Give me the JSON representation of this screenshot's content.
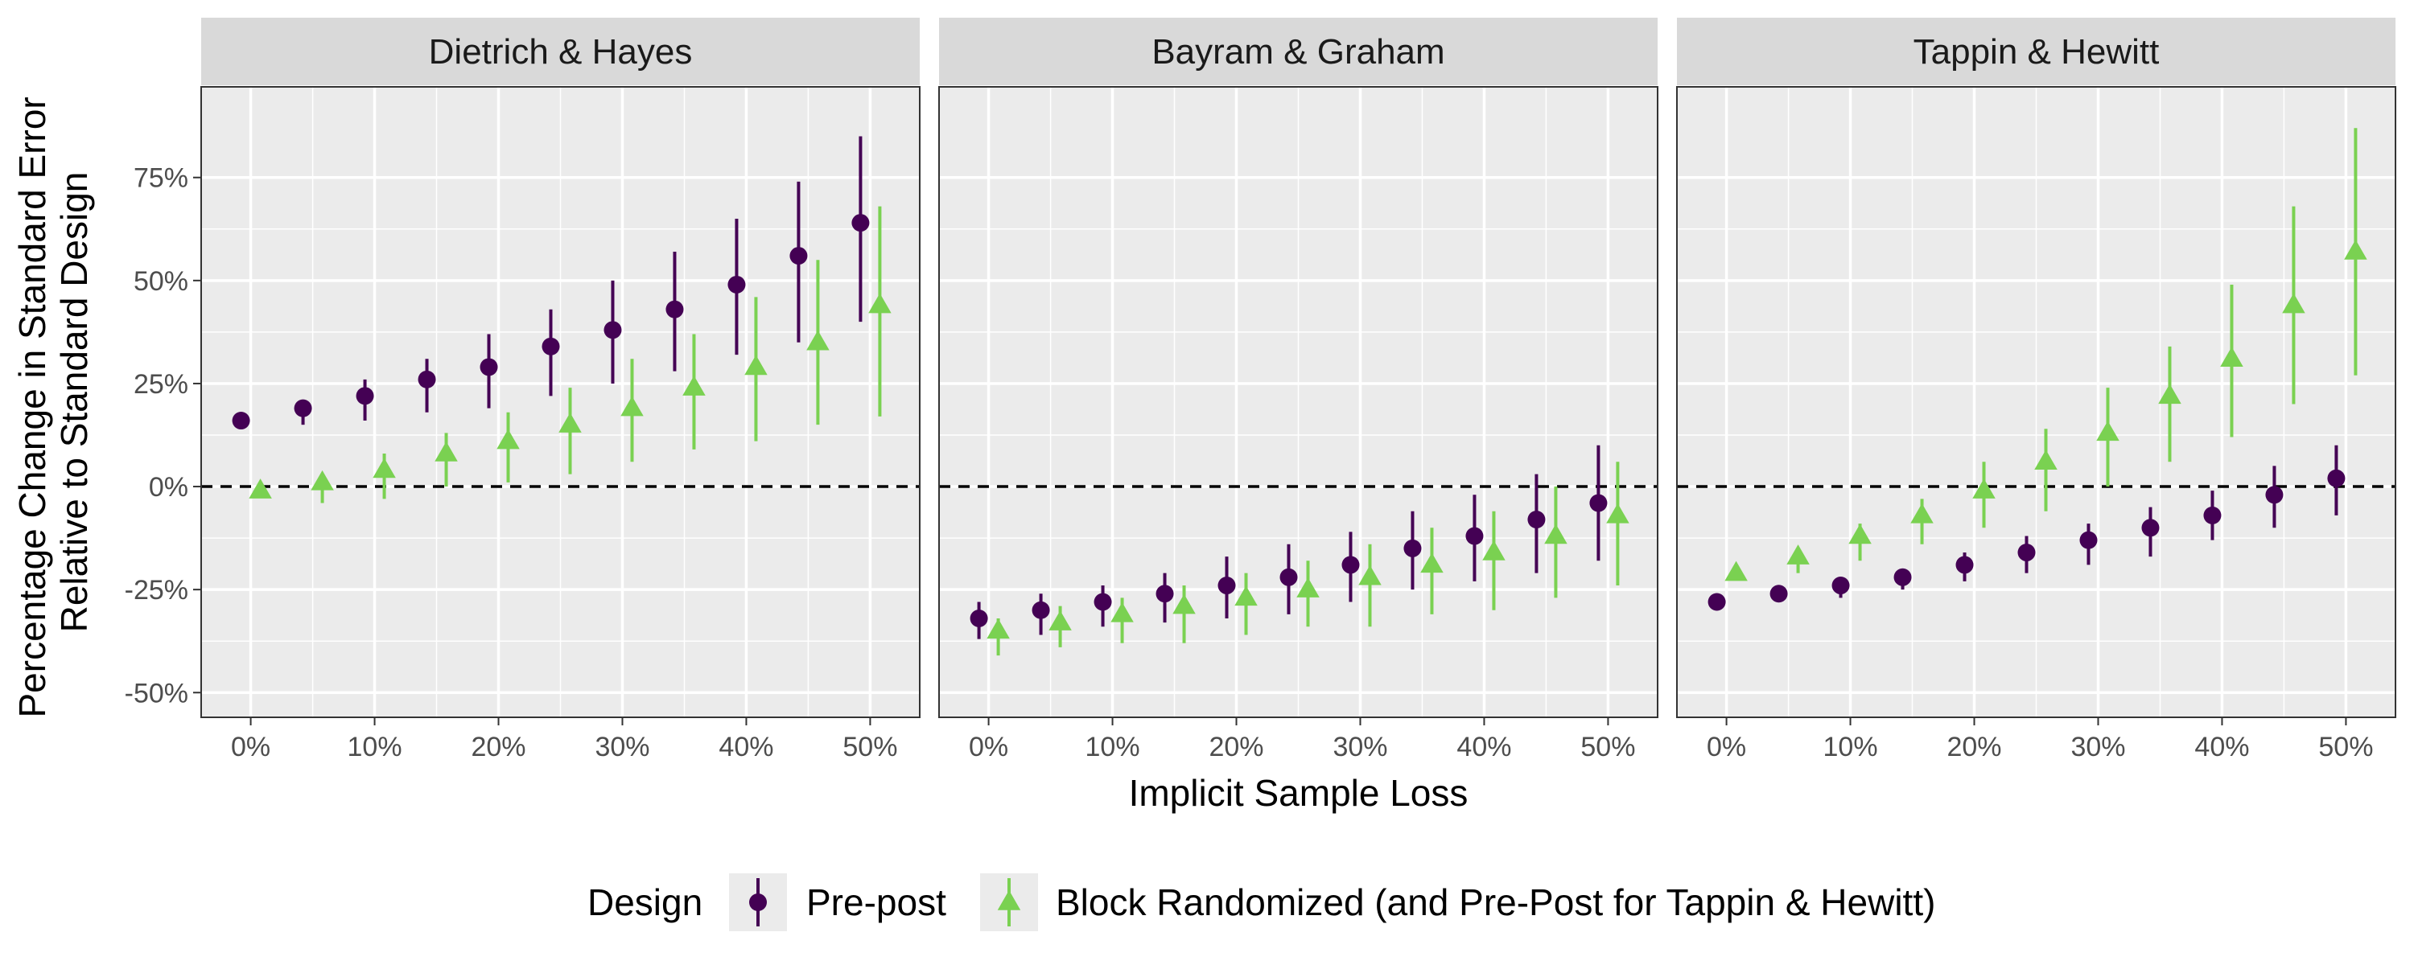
{
  "chart_data": {
    "type": "scatter",
    "ylabel": [
      "Percentage Change in Standard Error",
      "Relative to Standard Design"
    ],
    "xlabel": "Implicit Sample Loss",
    "x": [
      0,
      5,
      10,
      15,
      20,
      25,
      30,
      35,
      40,
      45,
      50
    ],
    "x_ticks": [
      0,
      10,
      20,
      30,
      40,
      50
    ],
    "x_tick_labels": [
      "0%",
      "10%",
      "20%",
      "30%",
      "40%",
      "50%"
    ],
    "y_ticks": [
      -50,
      -25,
      0,
      25,
      50,
      75
    ],
    "y_tick_labels": [
      "-50%",
      "-25%",
      "0%",
      "25%",
      "50%",
      "75%"
    ],
    "xlim": [
      -4,
      54
    ],
    "ylim": [
      -56,
      97
    ],
    "reference_line": 0,
    "grid": true,
    "legend": {
      "title": "Design",
      "position": "bottom",
      "items": [
        "Pre-post",
        "Block Randomized (and Pre-Post for Tappin & Hewitt)"
      ]
    },
    "colors": {
      "pre_post": "#440154",
      "block": "#7AD151"
    },
    "panels": [
      {
        "title": "Dietrich & Hayes",
        "series": [
          {
            "name": "Pre-post",
            "y": [
              16,
              19,
              22,
              26,
              29,
              34,
              38,
              43,
              49,
              56,
              64
            ],
            "lo": [
              16,
              15,
              16,
              18,
              19,
              22,
              25,
              28,
              32,
              35,
              40
            ],
            "hi": [
              16,
              21,
              26,
              31,
              37,
              43,
              50,
              57,
              65,
              74,
              85
            ]
          },
          {
            "name": "Block Randomized (and Pre-Post for Tappin & Hewitt)",
            "y": [
              -1,
              1,
              4,
              8,
              11,
              15,
              19,
              24,
              29,
              35,
              44
            ],
            "lo": [
              -1,
              -4,
              -3,
              0,
              1,
              3,
              6,
              9,
              11,
              15,
              17
            ],
            "hi": [
              -1,
              3,
              8,
              13,
              18,
              24,
              31,
              37,
              46,
              55,
              68
            ]
          }
        ]
      },
      {
        "title": "Bayram & Graham",
        "series": [
          {
            "name": "Pre-post",
            "y": [
              -32,
              -30,
              -28,
              -26,
              -24,
              -22,
              -19,
              -15,
              -12,
              -8,
              -4
            ],
            "lo": [
              -37,
              -36,
              -34,
              -33,
              -32,
              -31,
              -28,
              -25,
              -23,
              -21,
              -18
            ],
            "hi": [
              -28,
              -26,
              -24,
              -21,
              -17,
              -14,
              -11,
              -6,
              -2,
              3,
              10
            ]
          },
          {
            "name": "Block Randomized (and Pre-Post for Tappin & Hewitt)",
            "y": [
              -35,
              -33,
              -31,
              -29,
              -27,
              -25,
              -22,
              -19,
              -16,
              -12,
              -7
            ],
            "lo": [
              -41,
              -39,
              -38,
              -38,
              -36,
              -34,
              -34,
              -31,
              -30,
              -27,
              -24
            ],
            "hi": [
              -32,
              -29,
              -27,
              -24,
              -21,
              -18,
              -14,
              -10,
              -6,
              0,
              6
            ]
          }
        ]
      },
      {
        "title": "Tappin & Hewitt",
        "series": [
          {
            "name": "Pre-post",
            "y": [
              -28,
              -26,
              -24,
              -22,
              -19,
              -16,
              -13,
              -10,
              -7,
              -2,
              2
            ],
            "lo": [
              -28,
              -26,
              -27,
              -25,
              -23,
              -21,
              -19,
              -17,
              -13,
              -10,
              -7
            ],
            "hi": [
              -28,
              -26,
              -22,
              -20,
              -16,
              -12,
              -9,
              -5,
              -1,
              5,
              10
            ]
          },
          {
            "name": "Block Randomized (and Pre-Post for Tappin & Hewitt)",
            "y": [
              -21,
              -17,
              -12,
              -7,
              -1,
              6,
              13,
              22,
              31,
              44,
              57
            ],
            "lo": [
              -21,
              -21,
              -18,
              -14,
              -10,
              -6,
              0,
              6,
              12,
              20,
              27
            ],
            "hi": [
              -21,
              -15,
              -9,
              -3,
              6,
              14,
              24,
              34,
              49,
              68,
              87
            ]
          }
        ]
      }
    ]
  }
}
